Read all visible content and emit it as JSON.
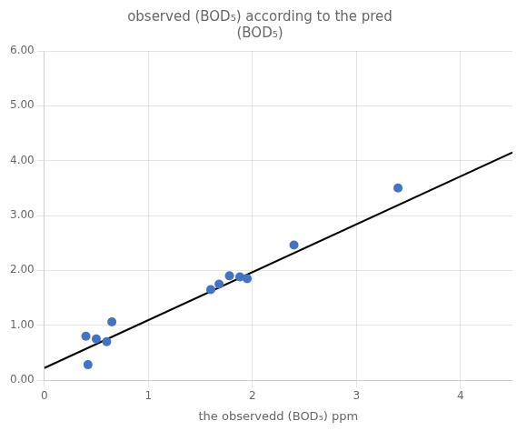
{
  "chart_data": {
    "type": "scatter",
    "title": "observed (BOD₅) according to the pred\n(BOD₅)",
    "x_label": "the observedd (BOD₅) ppm",
    "series": [
      {
        "type": "scatter",
        "color": "#4472C4",
        "x": [
          0.4,
          0.42,
          0.5,
          0.6,
          0.65,
          1.6,
          1.68,
          1.78,
          1.88,
          1.95,
          2.4,
          3.4
        ],
        "values": [
          0.8,
          0.28,
          0.75,
          0.7,
          1.06,
          1.65,
          1.75,
          1.9,
          1.88,
          1.85,
          2.46,
          3.5
        ]
      },
      {
        "type": "line",
        "color": "#000000",
        "x": [
          0.0,
          4.5
        ],
        "values": [
          0.22,
          4.15
        ]
      }
    ],
    "xlim": [
      0,
      4.5
    ],
    "ylim": [
      0,
      6.0
    ],
    "xticks": [
      0,
      1,
      2,
      3,
      4
    ],
    "yticks": [
      {
        "value": 0,
        "label": "0.00"
      },
      {
        "value": 1,
        "label": "1.00"
      },
      {
        "value": 2,
        "label": "2.00"
      },
      {
        "value": 3,
        "label": "3.00"
      },
      {
        "value": 4,
        "label": "4.00"
      },
      {
        "value": 5,
        "label": "5.00"
      },
      {
        "value": 6,
        "label": "6.00"
      }
    ],
    "grid": true
  }
}
